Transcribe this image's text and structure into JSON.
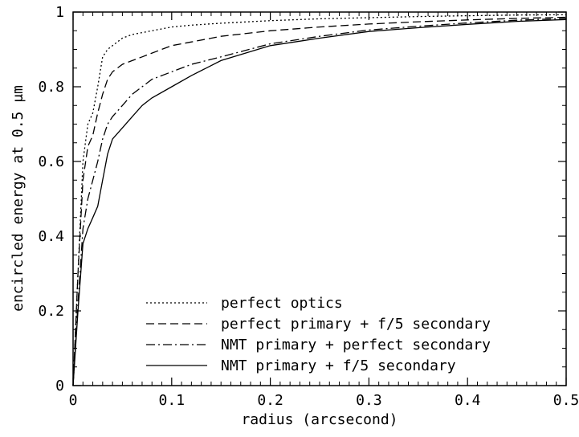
{
  "chart_data": {
    "type": "line",
    "xlabel": "radius (arcsecond)",
    "ylabel": "encircled energy at 0.5 μm",
    "xlim": [
      0,
      0.5
    ],
    "ylim": [
      0,
      1
    ],
    "x_ticks": [
      "0",
      "0.1",
      "0.2",
      "0.3",
      "0.4",
      "0.5"
    ],
    "y_ticks": [
      "0",
      "0.2",
      "0.4",
      "0.6",
      "0.8",
      "1"
    ],
    "grid": false,
    "legend_position": "bottom-center",
    "series": [
      {
        "name": "perfect optics",
        "style": "dotted",
        "x": [
          0,
          0.005,
          0.01,
          0.015,
          0.02,
          0.025,
          0.03,
          0.035,
          0.04,
          0.05,
          0.06,
          0.07,
          0.08,
          0.1,
          0.12,
          0.15,
          0.2,
          0.25,
          0.3,
          0.35,
          0.4,
          0.45,
          0.5
        ],
        "y": [
          0,
          0.3,
          0.6,
          0.7,
          0.73,
          0.8,
          0.88,
          0.9,
          0.91,
          0.93,
          0.94,
          0.945,
          0.95,
          0.96,
          0.965,
          0.97,
          0.977,
          0.982,
          0.985,
          0.988,
          0.99,
          0.992,
          0.993
        ]
      },
      {
        "name": "perfect primary + f/5 secondary",
        "style": "dashed",
        "x": [
          0,
          0.005,
          0.01,
          0.015,
          0.02,
          0.025,
          0.03,
          0.035,
          0.04,
          0.05,
          0.06,
          0.07,
          0.08,
          0.1,
          0.12,
          0.15,
          0.2,
          0.25,
          0.3,
          0.35,
          0.4,
          0.45,
          0.5
        ],
        "y": [
          0,
          0.3,
          0.55,
          0.64,
          0.67,
          0.73,
          0.78,
          0.82,
          0.84,
          0.86,
          0.87,
          0.88,
          0.89,
          0.91,
          0.92,
          0.935,
          0.95,
          0.96,
          0.968,
          0.974,
          0.979,
          0.983,
          0.986
        ]
      },
      {
        "name": "NMT primary + perfect secondary",
        "style": "dash-dot",
        "x": [
          0,
          0.005,
          0.01,
          0.015,
          0.02,
          0.025,
          0.03,
          0.035,
          0.04,
          0.05,
          0.06,
          0.07,
          0.08,
          0.1,
          0.12,
          0.15,
          0.2,
          0.25,
          0.3,
          0.35,
          0.4,
          0.45,
          0.5
        ],
        "y": [
          0,
          0.22,
          0.42,
          0.5,
          0.55,
          0.6,
          0.66,
          0.7,
          0.72,
          0.75,
          0.78,
          0.8,
          0.82,
          0.84,
          0.86,
          0.88,
          0.915,
          0.935,
          0.952,
          0.962,
          0.971,
          0.978,
          0.983
        ]
      },
      {
        "name": "NMT primary + f/5 secondary",
        "style": "solid",
        "x": [
          0,
          0.005,
          0.01,
          0.015,
          0.02,
          0.025,
          0.03,
          0.035,
          0.04,
          0.05,
          0.06,
          0.07,
          0.08,
          0.1,
          0.12,
          0.15,
          0.2,
          0.25,
          0.3,
          0.35,
          0.4,
          0.45,
          0.5
        ],
        "y": [
          0,
          0.2,
          0.38,
          0.42,
          0.45,
          0.48,
          0.55,
          0.62,
          0.66,
          0.69,
          0.72,
          0.75,
          0.77,
          0.8,
          0.83,
          0.87,
          0.91,
          0.93,
          0.948,
          0.958,
          0.967,
          0.975,
          0.98
        ]
      }
    ]
  }
}
